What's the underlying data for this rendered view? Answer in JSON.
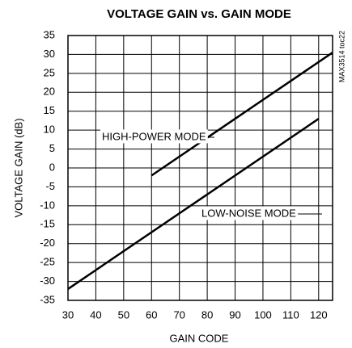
{
  "chart_data": {
    "type": "line",
    "title": "VOLTAGE GAIN vs. GAIN MODE",
    "xlabel": "GAIN CODE",
    "ylabel": "VOLTAGE GAIN (dB)",
    "side_note": "MAX3514 toc22",
    "annotations": [
      "HIGH-POWER MODE",
      "LOW-NOISE MODE"
    ],
    "series": [
      {
        "name": "HIGH-POWER MODE",
        "color": "#000000",
        "x": [
          60,
          125
        ],
        "values": [
          -2,
          30.5
        ]
      },
      {
        "name": "LOW-NOISE MODE",
        "color": "#000000",
        "x": [
          30,
          120
        ],
        "values": [
          -32,
          13
        ]
      }
    ],
    "xlim": [
      30,
      125
    ],
    "xticks": [
      30,
      40,
      50,
      60,
      70,
      80,
      90,
      100,
      110,
      120
    ],
    "ylim": [
      -35,
      35
    ],
    "yticks": [
      35,
      30,
      25,
      20,
      15,
      10,
      5,
      0,
      -5,
      -10,
      -15,
      -20,
      -25,
      -30,
      -35
    ],
    "grid": true
  }
}
